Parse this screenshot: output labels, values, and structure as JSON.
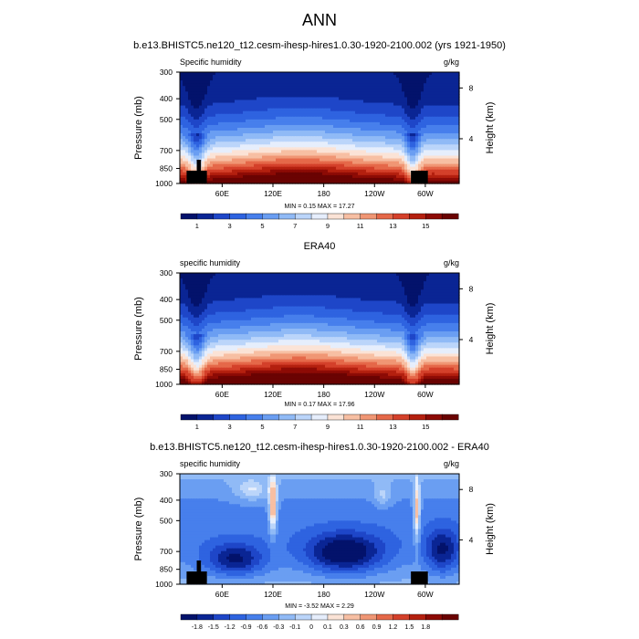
{
  "page": {
    "title": "ANN"
  },
  "chart_data": [
    {
      "type": "heatmap",
      "title": "b.e13.BHISTC5.ne120_t12.cesm-ihesp-hires1.0.30-1920-2100.002 (yrs 1921-1950)",
      "left_label": "Specific humidity",
      "right_label": "g/kg",
      "ylabel": "Pressure (mb)",
      "ylabel_right": "Height (km)",
      "y_ticks": [
        "300",
        "400",
        "500",
        "700",
        "850",
        "1000"
      ],
      "y_ticks_right": [
        "8",
        "4"
      ],
      "x_ticks": [
        "60E",
        "120E",
        "180",
        "120W",
        "60W"
      ],
      "stats": {
        "min_label": "MIN =",
        "min": "0.15",
        "max_label": "MAX =",
        "max": "17.27"
      },
      "colorbar": {
        "colors": [
          "#03126b",
          "#0a2594",
          "#1e46c8",
          "#2e63e0",
          "#477fec",
          "#6a9ef2",
          "#90baf6",
          "#bbd5fa",
          "#e6eefc",
          "#fbe3d6",
          "#f7bfa3",
          "#f09674",
          "#e56849",
          "#d4402a",
          "#b4200f",
          "#8d0b05",
          "#6a0302"
        ],
        "labels": [
          "1",
          "3",
          "5",
          "7",
          "9",
          "11",
          "13",
          "15"
        ]
      },
      "value_range": [
        0.15,
        17.27
      ]
    },
    {
      "type": "heatmap",
      "title": "ERA40",
      "left_label": "specific humidity",
      "right_label": "g/kg",
      "ylabel": "Pressure (mb)",
      "ylabel_right": "Height (km)",
      "y_ticks": [
        "300",
        "400",
        "500",
        "700",
        "850",
        "1000"
      ],
      "y_ticks_right": [
        "8",
        "4"
      ],
      "x_ticks": [
        "60E",
        "120E",
        "180",
        "120W",
        "60W"
      ],
      "stats": {
        "min_label": "MIN =",
        "min": "0.17",
        "max_label": "MAX =",
        "max": "17.96"
      },
      "colorbar": {
        "colors": [
          "#03126b",
          "#0a2594",
          "#1e46c8",
          "#2e63e0",
          "#477fec",
          "#6a9ef2",
          "#90baf6",
          "#bbd5fa",
          "#e6eefc",
          "#fbe3d6",
          "#f7bfa3",
          "#f09674",
          "#e56849",
          "#d4402a",
          "#b4200f",
          "#8d0b05",
          "#6a0302"
        ],
        "labels": [
          "1",
          "3",
          "5",
          "7",
          "9",
          "11",
          "13",
          "15"
        ]
      },
      "value_range": [
        0.17,
        17.96
      ]
    },
    {
      "type": "heatmap",
      "title": "b.e13.BHISTC5.ne120_t12.cesm-ihesp-hires1.0.30-1920-2100.002 - ERA40",
      "left_label": "specific humidity",
      "right_label": "g/kg",
      "ylabel": "Pressure (mb)",
      "ylabel_right": "Height (km)",
      "y_ticks": [
        "300",
        "400",
        "500",
        "700",
        "850",
        "1000"
      ],
      "y_ticks_right": [
        "8",
        "4"
      ],
      "x_ticks": [
        "60E",
        "120E",
        "180",
        "120W",
        "60W"
      ],
      "stats": {
        "min_label": "MIN =",
        "min": "-3.52",
        "max_label": "MAX =",
        "max": "2.29"
      },
      "colorbar": {
        "colors": [
          "#03126b",
          "#0a2594",
          "#1e46c8",
          "#2e63e0",
          "#477fec",
          "#6a9ef2",
          "#90baf6",
          "#bbd5fa",
          "#e6eefc",
          "#fbe3d6",
          "#f7bfa3",
          "#f09674",
          "#e56849",
          "#d4402a",
          "#b4200f",
          "#8d0b05",
          "#6a0302"
        ],
        "labels": [
          "-1.8",
          "-1.5",
          "-1.2",
          "-0.9",
          "-0.6",
          "-0.3",
          "-0.1",
          "0",
          "0.1",
          "0.3",
          "0.6",
          "0.9",
          "1.2",
          "1.5",
          "1.8"
        ]
      },
      "value_range": [
        -3.52,
        2.29
      ]
    }
  ]
}
